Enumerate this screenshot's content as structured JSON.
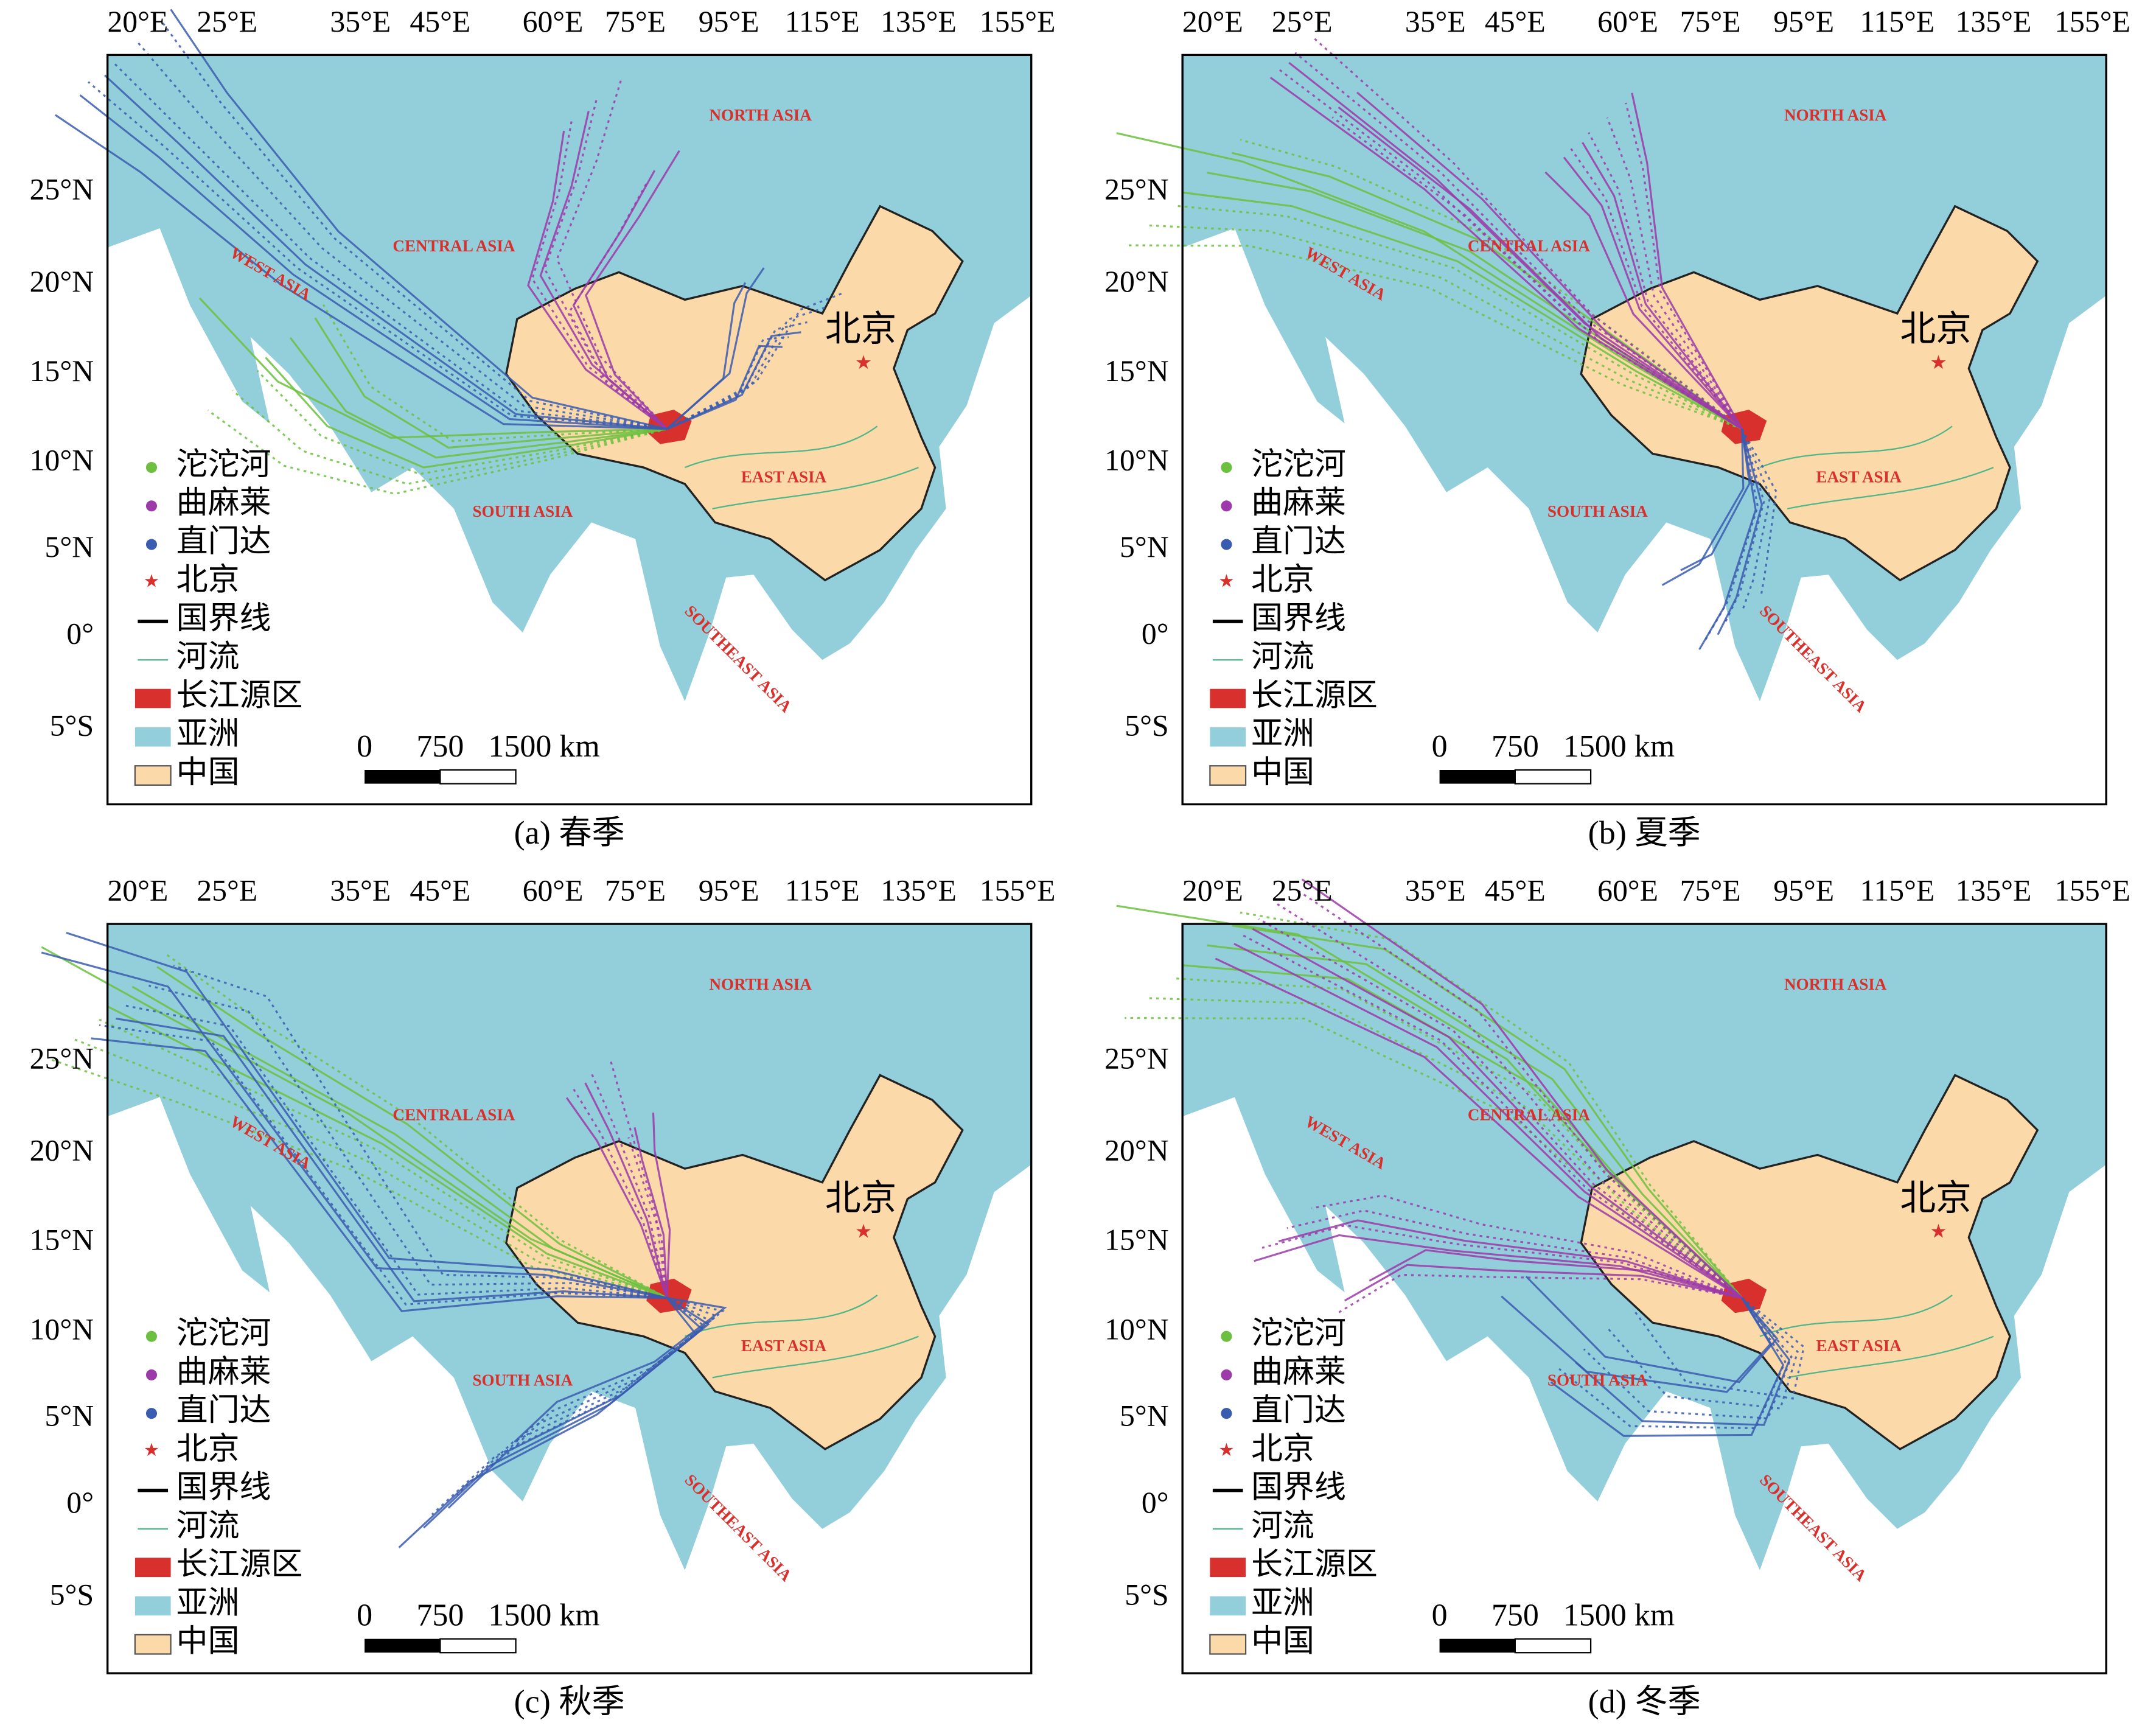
{
  "lon_labels": [
    "20°E",
    "25°E",
    "35°E",
    "45°E",
    "60°E",
    "75°E",
    "95°E",
    "115°E",
    "135°E",
    "155°E"
  ],
  "lat_labels": [
    "25°N",
    "20°N",
    "15°N",
    "10°N",
    "5°N",
    "0°",
    "5°S"
  ],
  "regions": [
    "NORTH ASIA",
    "CENTRAL ASIA",
    "WEST ASIA",
    "SOUTH ASIA",
    "EAST ASIA",
    "SOUTHEAST ASIA"
  ],
  "city": "北京",
  "legend": [
    "沱沱河",
    "曲麻莱",
    "直门达",
    "北京",
    "国界线",
    "河流",
    "长江源区",
    "亚洲",
    "中国"
  ],
  "scale_bar": [
    "0",
    "750",
    "1500 km"
  ],
  "panels": [
    {
      "caption": "(a) 春季"
    },
    {
      "caption": "(b) 夏季"
    },
    {
      "caption": "(c) 秋季"
    },
    {
      "caption": "(d) 冬季"
    }
  ]
}
